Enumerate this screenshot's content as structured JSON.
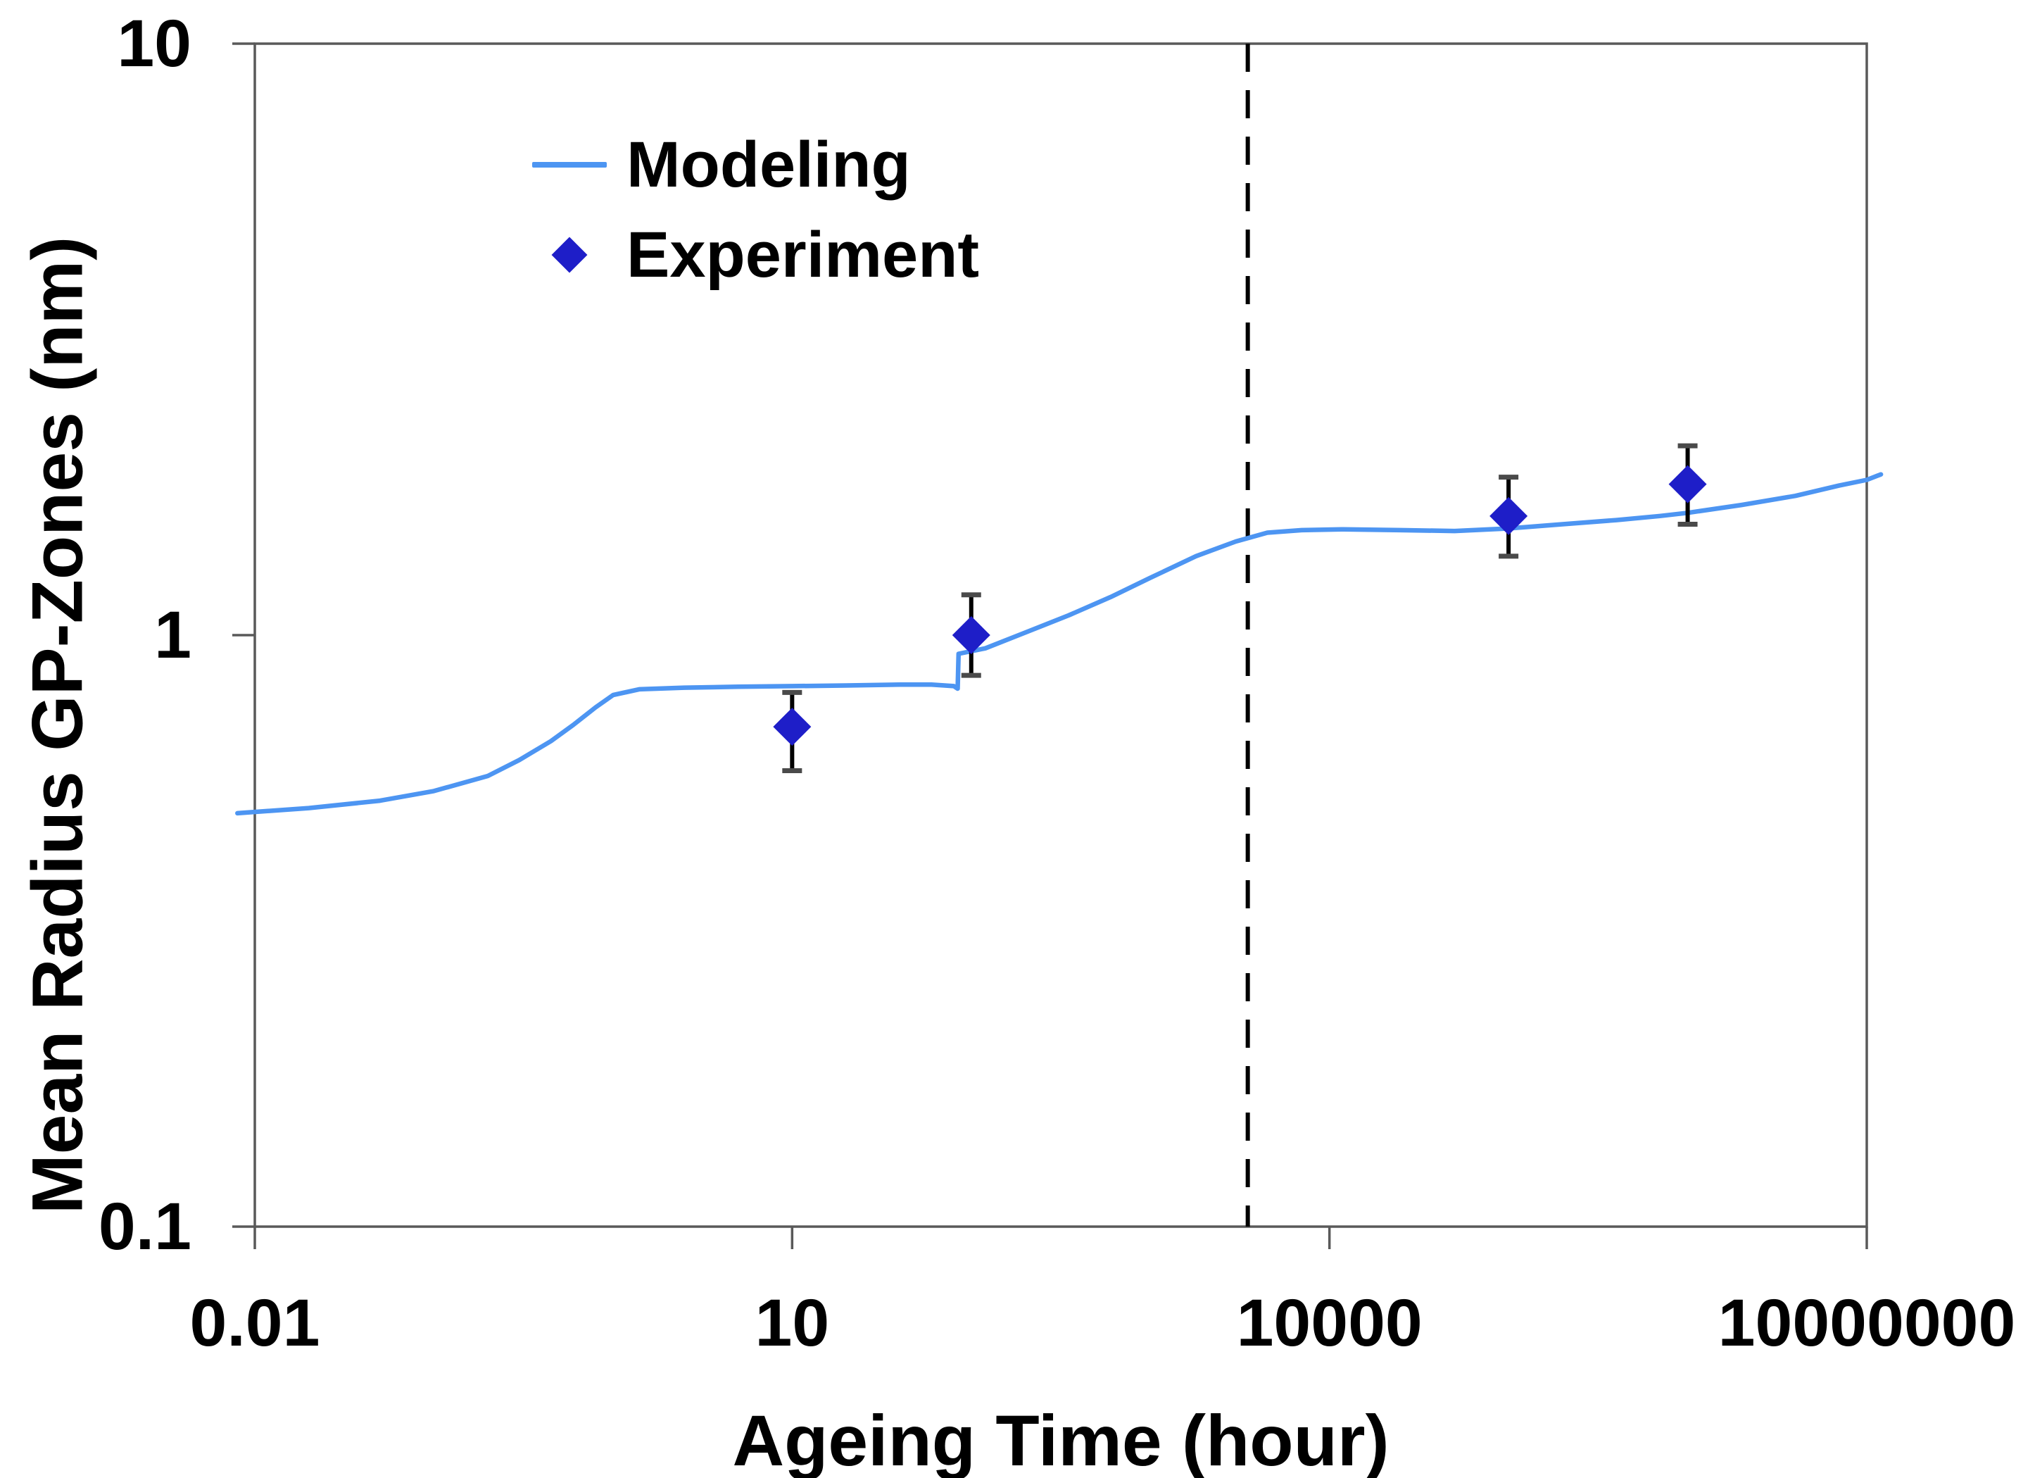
{
  "figure": {
    "background_color": "#ffffff",
    "axis_color": "#595959",
    "text_color": "#000000",
    "dashed_line_color": "#000000",
    "error_bar_color": "#000000",
    "error_cap_color": "#4a4a4a"
  },
  "chart_data": {
    "type": "line",
    "title": "",
    "xlabel": "Ageing Time (hour)",
    "ylabel": "Mean Radius GP-Zones (nm)",
    "x_scale": "log",
    "y_scale": "log",
    "xlim": [
      0.01,
      10000000
    ],
    "ylim": [
      0.1,
      10
    ],
    "grid": false,
    "legend_position": "upper-left-inside",
    "x_ticks": [
      {
        "value": 0.01,
        "label": "0.01"
      },
      {
        "value": 10,
        "label": "10"
      },
      {
        "value": 10000,
        "label": "10000"
      },
      {
        "value": 10000000,
        "label": "10000000"
      }
    ],
    "y_ticks": [
      {
        "value": 0.1,
        "label": "0.1"
      },
      {
        "value": 1,
        "label": "1"
      },
      {
        "value": 10,
        "label": "10"
      }
    ],
    "series": [
      {
        "name": "Modeling",
        "type": "line",
        "color": "#4d95f2",
        "points": [
          [
            0.008,
            0.5
          ],
          [
            0.02,
            0.51
          ],
          [
            0.05,
            0.525
          ],
          [
            0.1,
            0.545
          ],
          [
            0.2,
            0.578
          ],
          [
            0.3,
            0.615
          ],
          [
            0.45,
            0.662
          ],
          [
            0.6,
            0.705
          ],
          [
            0.8,
            0.755
          ],
          [
            1.0,
            0.792
          ],
          [
            1.4,
            0.81
          ],
          [
            2.5,
            0.815
          ],
          [
            5,
            0.818
          ],
          [
            10,
            0.82
          ],
          [
            20,
            0.822
          ],
          [
            40,
            0.825
          ],
          [
            60,
            0.825
          ],
          [
            80,
            0.82
          ],
          [
            84,
            0.812
          ],
          [
            85,
            0.93
          ],
          [
            120,
            0.95
          ],
          [
            200,
            1.01
          ],
          [
            350,
            1.08
          ],
          [
            600,
            1.16
          ],
          [
            1000,
            1.25
          ],
          [
            1800,
            1.36
          ],
          [
            3000,
            1.44
          ],
          [
            4500,
            1.49
          ],
          [
            7000,
            1.505
          ],
          [
            12000,
            1.51
          ],
          [
            25000,
            1.505
          ],
          [
            50000,
            1.5
          ],
          [
            100000,
            1.515
          ],
          [
            200000,
            1.54
          ],
          [
            400000,
            1.565
          ],
          [
            700000,
            1.59
          ],
          [
            1000000,
            1.61
          ],
          [
            2000000,
            1.66
          ],
          [
            4000000,
            1.72
          ],
          [
            7000000,
            1.79
          ],
          [
            10000000,
            1.83
          ],
          [
            12000000,
            1.87
          ]
        ]
      },
      {
        "name": "Experiment",
        "type": "scatter",
        "marker": "diamond",
        "color": "#1e1ec8",
        "points": [
          {
            "x": 10,
            "y": 0.7,
            "y_low": 0.59,
            "y_high": 0.8
          },
          {
            "x": 100,
            "y": 1.0,
            "y_low": 0.855,
            "y_high": 1.17
          },
          {
            "x": 100000,
            "y": 1.59,
            "y_low": 1.36,
            "y_high": 1.85
          },
          {
            "x": 1000000,
            "y": 1.8,
            "y_low": 1.54,
            "y_high": 2.09
          }
        ]
      }
    ],
    "annotations": [
      {
        "type": "vline",
        "x": 3500,
        "style": "dashed",
        "color": "#000000"
      }
    ]
  },
  "legend": {
    "items": [
      {
        "label": "Modeling",
        "swatch": "line"
      },
      {
        "label": "Experiment",
        "swatch": "diamond"
      }
    ]
  }
}
